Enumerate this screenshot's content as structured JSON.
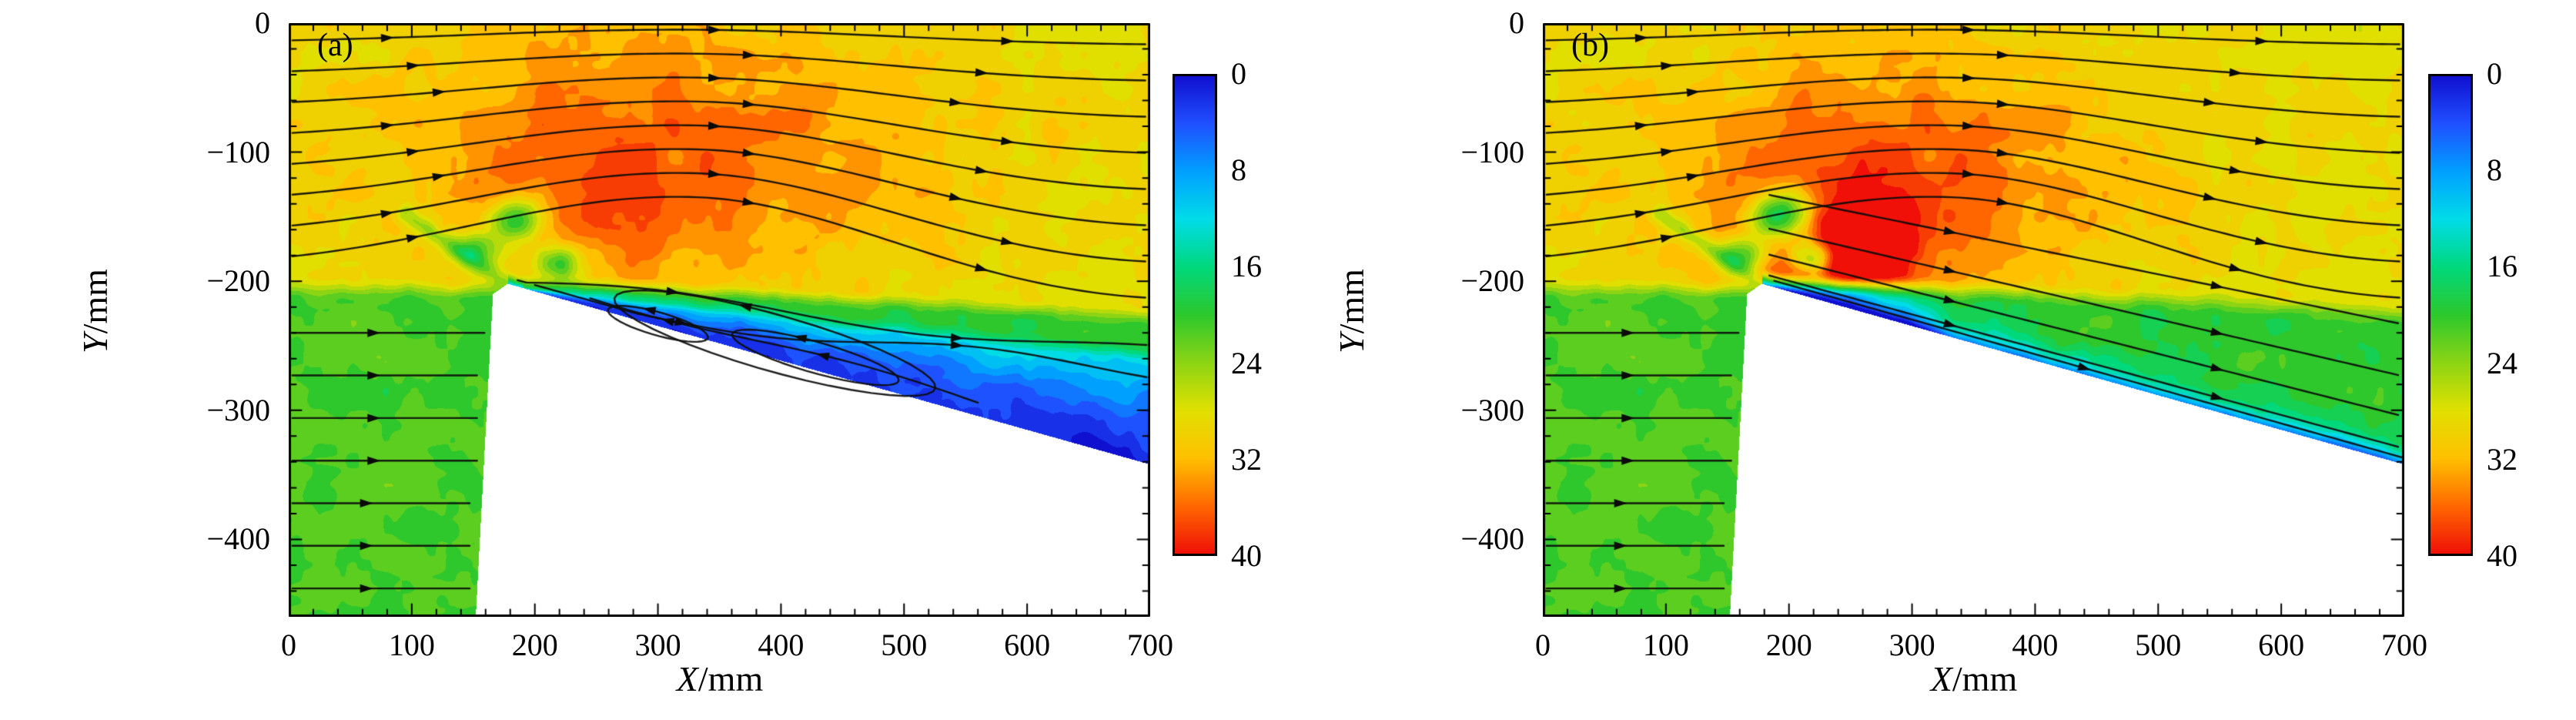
{
  "figure": {
    "colormap_anchors": [
      {
        "t": 0.0,
        "c": "#1010d0"
      },
      {
        "t": 0.1,
        "c": "#2050ff"
      },
      {
        "t": 0.2,
        "c": "#00a0ff"
      },
      {
        "t": 0.3,
        "c": "#00dce8"
      },
      {
        "t": 0.4,
        "c": "#00d87c"
      },
      {
        "t": 0.5,
        "c": "#2cc82c"
      },
      {
        "t": 0.6,
        "c": "#8cd414"
      },
      {
        "t": 0.7,
        "c": "#e0e000"
      },
      {
        "t": 0.8,
        "c": "#ffc000"
      },
      {
        "t": 0.9,
        "c": "#ff6800"
      },
      {
        "t": 1.0,
        "c": "#f01008"
      }
    ]
  },
  "chart_data": [
    {
      "type": "heatmap",
      "title": "(a)",
      "xlabel": "X/mm",
      "ylabel": "Y/mm",
      "xlabel_parts": {
        "var": "X",
        "rest": "/mm"
      },
      "ylabel_parts": {
        "var": "Y",
        "rest": "/mm"
      },
      "xlim": [
        0,
        700
      ],
      "ylim": [
        -460,
        0
      ],
      "x_ticks": [
        0,
        100,
        200,
        300,
        400,
        500,
        600,
        700
      ],
      "x_tick_labels": [
        "0",
        "100",
        "200",
        "300",
        "400",
        "500",
        "600",
        "700"
      ],
      "x_minor_step": 20,
      "y_ticks": [
        0,
        -100,
        -200,
        -300,
        -400
      ],
      "y_tick_labels": [
        "0",
        "−100",
        "−200",
        "−300",
        "−400"
      ],
      "y_minor_step": 20,
      "colorbar": {
        "min": 0,
        "max": 40,
        "values": [
          0,
          8,
          16,
          24,
          32,
          40
        ],
        "labels": [
          "0",
          "8",
          "16",
          "24",
          "32",
          "40"
        ],
        "orientation": "vertical",
        "top_value_at_top": true
      },
      "overlay": "streamlines-with-arrows",
      "body_polygon_mm": [
        [
          152,
          -460
        ],
        [
          166,
          -210
        ],
        [
          178,
          -202
        ],
        [
          700,
          -342
        ],
        [
          700,
          -460
        ]
      ],
      "flow_features": {
        "freestream_value": 28,
        "lower_stream_value": 21,
        "green_band_value": 20,
        "yellow_boundary_slope": 0.055,
        "hot_core": {
          "center": [
            310,
            -100
          ],
          "sigma": [
            185,
            80
          ],
          "peak_add": 7.5
        },
        "warm_spot": {
          "center": [
            230,
            -155
          ],
          "sigma": [
            70,
            50
          ],
          "peak_add": 3
        },
        "cool_spots": [
          {
            "center": [
              186,
              -152
            ],
            "sigma": [
              18,
              12
            ],
            "add": -14
          },
          {
            "center": [
              152,
              -176
            ],
            "sigma": [
              14,
              10
            ],
            "add": -11
          },
          {
            "center": [
              218,
              -186
            ],
            "sigma": [
              15,
              11
            ],
            "add": -14
          }
        ],
        "separation": {
          "surface_value": 2,
          "edge_value": 13,
          "top_boundary_slope": 0.105
        },
        "boundary_layer_streak": {
          "from": [
            95,
            -148
          ],
          "to": [
            176,
            -201
          ],
          "depth": -6,
          "width_mm": 5
        }
      },
      "streamlines": {
        "upper_seeds_y": [
          -15,
          -40,
          -65,
          -90,
          -115,
          -140,
          -165,
          -190
        ],
        "lower_seeds_y": [
          -240,
          -273,
          -306,
          -339,
          -372,
          -405,
          -438
        ],
        "shear_line_offsets": [
          4,
          -12
        ],
        "reverse_flow_line": true,
        "recirculation_ellipses": [
          {
            "center": [
              395,
              -248
            ],
            "axes": [
              135,
              22
            ]
          },
          {
            "center": [
              428,
              -259
            ],
            "axes": [
              70,
              12
            ]
          },
          {
            "center": [
              300,
              -233
            ],
            "axes": [
              42,
              9
            ]
          }
        ]
      }
    },
    {
      "type": "heatmap",
      "title": "(b)",
      "xlabel": "X/mm",
      "ylabel": "Y/mm",
      "xlabel_parts": {
        "var": "X",
        "rest": "/mm"
      },
      "ylabel_parts": {
        "var": "Y",
        "rest": "/mm"
      },
      "xlim": [
        0,
        700
      ],
      "ylim": [
        -460,
        0
      ],
      "x_ticks": [
        0,
        100,
        200,
        300,
        400,
        500,
        600,
        700
      ],
      "x_tick_labels": [
        "0",
        "100",
        "200",
        "300",
        "400",
        "500",
        "600",
        "700"
      ],
      "x_minor_step": 20,
      "y_ticks": [
        0,
        -100,
        -200,
        -300,
        -400
      ],
      "y_tick_labels": [
        "0",
        "−100",
        "−200",
        "−300",
        "−400"
      ],
      "y_minor_step": 20,
      "colorbar": {
        "min": 0,
        "max": 40,
        "values": [
          0,
          8,
          16,
          24,
          32,
          40
        ],
        "labels": [
          "0",
          "8",
          "16",
          "24",
          "32",
          "40"
        ],
        "orientation": "vertical",
        "top_value_at_top": true
      },
      "overlay": "streamlines-with-arrows",
      "body_polygon_mm": [
        [
          152,
          -460
        ],
        [
          166,
          -210
        ],
        [
          178,
          -202
        ],
        [
          700,
          -342
        ],
        [
          700,
          -460
        ]
      ],
      "flow_features": {
        "freestream_value": 28,
        "lower_stream_value": 21,
        "yellow_boundary_slope": 0.05,
        "hot_core": {
          "center": [
            285,
            -115
          ],
          "sigma": [
            170,
            75
          ],
          "peak_add": 7
        },
        "warm_spot": {
          "center": [
            250,
            -160
          ],
          "sigma": [
            80,
            55
          ],
          "peak_add": 4
        },
        "jet_spot": {
          "center": [
            232,
            -182
          ],
          "sigma": [
            38,
            26
          ],
          "peak_add": 16
        },
        "cool_spots": [
          {
            "center": [
              196,
              -150
            ],
            "sigma": [
              20,
              14
            ],
            "add": -22
          },
          {
            "center": [
              162,
              -180
            ],
            "sigma": [
              14,
              10
            ],
            "add": -14
          },
          {
            "center": [
              218,
              -182
            ],
            "sigma": [
              16,
              12
            ],
            "add": -24
          }
        ],
        "slope_layer": {
          "outer_value": 20,
          "surface_value": 6,
          "decay_mm": 10,
          "crest_blue": {
            "x_range": [
              180,
              320
            ],
            "extra": -9
          }
        },
        "boundary_layer_streak": {
          "from": [
            95,
            -148
          ],
          "to": [
            176,
            -201
          ],
          "depth": -6,
          "width_mm": 5
        }
      },
      "streamlines": {
        "upper_seeds_y": [
          -15,
          -40,
          -65,
          -90,
          -115,
          -140,
          -165,
          -190
        ],
        "lower_seeds_y": [
          -240,
          -273,
          -306,
          -339,
          -372,
          -405,
          -438
        ],
        "slope_offsets": [
          8,
          24,
          44,
          70
        ]
      }
    }
  ]
}
